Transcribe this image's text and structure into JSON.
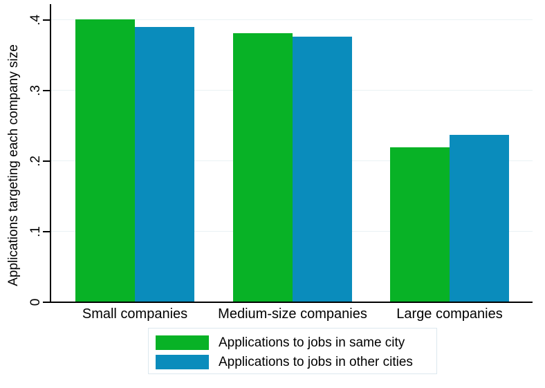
{
  "chart_data": {
    "type": "bar",
    "title": "",
    "categories": [
      "Small companies",
      "Medium-size companies",
      "Large companies"
    ],
    "series": [
      {
        "name": "Applications to jobs in same city",
        "color": "#08b226",
        "values": [
          0.4,
          0.38,
          0.219
        ]
      },
      {
        "name": "Applications to jobs in other cities",
        "color": "#0a8cbc",
        "values": [
          0.389,
          0.375,
          0.236
        ]
      }
    ],
    "xlabel": "",
    "ylabel": "Applications targeting each company size",
    "ylim": [
      0,
      0.42
    ],
    "yticks": [
      0,
      0.1,
      0.2,
      0.3,
      0.4
    ],
    "ytick_labels": [
      "0",
      ".1",
      ".2",
      ".3",
      ".4"
    ],
    "grid": "horizontal",
    "gridline_color": "#eaf2f4",
    "axis_color": "#000000",
    "legend_position": "bottom",
    "legend_border_color": "#dce8ee",
    "background_color": "#ffffff"
  }
}
